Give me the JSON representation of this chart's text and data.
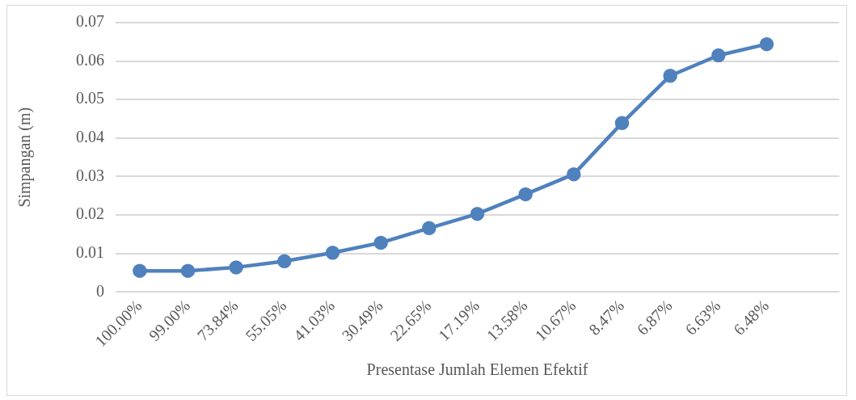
{
  "chart_data": {
    "type": "line",
    "xlabel": "Presentase Jumlah Elemen Efektif",
    "ylabel": "Simpangan (m)",
    "categories": [
      "100.00%",
      "99.00%",
      "73.84%",
      "55.05%",
      "41.03%",
      "30.49%",
      "22.65%",
      "17.19%",
      "13.58%",
      "10.67%",
      "8.47%",
      "6.87%",
      "6.63%",
      "6.48%",
      null
    ],
    "series": [
      {
        "color": "#4f81bd",
        "values": [
          0.0055,
          0.0055,
          0.0064,
          0.008,
          0.0102,
          0.0128,
          0.0166,
          0.0203,
          0.0254,
          0.0306,
          0.0439,
          0.0562,
          0.0615,
          0.0644,
          null
        ]
      }
    ],
    "ylim": [
      0,
      0.07
    ],
    "yticks": [
      0,
      0.01,
      0.02,
      0.03,
      0.04,
      0.05,
      0.06,
      0.07
    ],
    "grid": "y",
    "marker": "circle",
    "line_style": "solid"
  }
}
